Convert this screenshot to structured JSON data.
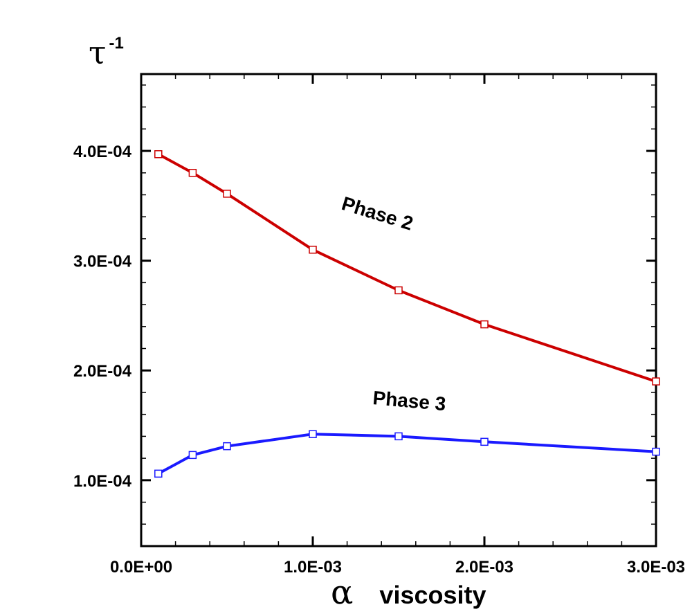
{
  "chart_data": {
    "type": "line",
    "title": "",
    "ylabel": {
      "symbol": "τ",
      "superscript": "-1"
    },
    "xlabel": {
      "symbol": "α",
      "text": "viscosity"
    },
    "xlim": [
      0.0,
      0.003
    ],
    "ylim": [
      4e-05,
      0.00047
    ],
    "xticks": [
      {
        "value": 0.0,
        "label": "0.0E+00"
      },
      {
        "value": 0.001,
        "label": "1.0E-03"
      },
      {
        "value": 0.002,
        "label": "2.0E-03"
      },
      {
        "value": 0.003,
        "label": "3.0E-03"
      }
    ],
    "yticks": [
      {
        "value": 0.0001,
        "label": "1.0E-04"
      },
      {
        "value": 0.0002,
        "label": "2.0E-04"
      },
      {
        "value": 0.0003,
        "label": "3.0E-04"
      },
      {
        "value": 0.0004,
        "label": "4.0E-04"
      }
    ],
    "grid": false,
    "marker": "open-square",
    "series": [
      {
        "name": "Phase 2",
        "color": "#cc0000",
        "x": [
          0.0001,
          0.0003,
          0.0005,
          0.001,
          0.0015,
          0.002,
          0.003
        ],
        "y": [
          0.000397,
          0.00038,
          0.000361,
          0.00031,
          0.000273,
          0.000242,
          0.00019
        ]
      },
      {
        "name": "Phase 3",
        "color": "#1a1aff",
        "x": [
          0.0001,
          0.0003,
          0.0005,
          0.001,
          0.0015,
          0.002,
          0.003
        ],
        "y": [
          0.000106,
          0.000123,
          0.000131,
          0.000142,
          0.00014,
          0.000135,
          0.000126
        ]
      }
    ]
  }
}
